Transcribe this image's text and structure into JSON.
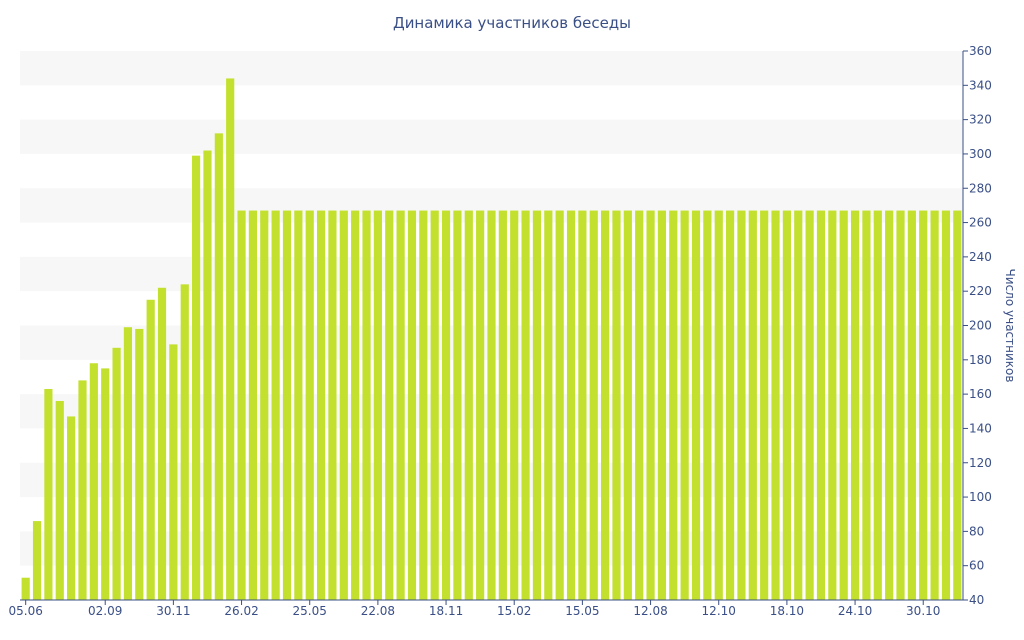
{
  "chart_data": {
    "type": "bar",
    "title": "Динамика участников беседы",
    "ylabel": "Число участников",
    "xlabel": "",
    "ylim": [
      40,
      360
    ],
    "yticks": [
      40,
      60,
      80,
      100,
      120,
      140,
      160,
      180,
      200,
      220,
      240,
      260,
      280,
      300,
      320,
      340,
      360
    ],
    "x_tick_labels": [
      "05.06",
      "02.09",
      "30.11",
      "26.02",
      "25.05",
      "22.08",
      "18.11",
      "15.02",
      "15.05",
      "12.08",
      "12.10",
      "18.10",
      "24.10",
      "30.10"
    ],
    "x_tick_label_indices": [
      0,
      7,
      13,
      19,
      25,
      31,
      37,
      43,
      49,
      55,
      61,
      67,
      73,
      79
    ],
    "values": [
      53,
      86,
      163,
      156,
      147,
      168,
      178,
      175,
      187,
      199,
      198,
      215,
      222,
      189,
      224,
      299,
      302,
      312,
      344,
      267,
      267,
      267,
      267,
      267,
      267,
      267,
      267,
      267,
      267,
      267,
      267,
      267,
      267,
      267,
      267,
      267,
      267,
      267,
      267,
      267,
      267,
      267,
      267,
      267,
      267,
      267,
      267,
      267,
      267,
      267,
      267,
      267,
      267,
      267,
      267,
      267,
      267,
      267,
      267,
      267,
      267,
      267,
      267,
      267,
      267,
      267,
      267,
      267,
      267,
      267,
      267,
      267,
      267,
      267,
      267,
      267,
      267,
      267,
      267,
      267,
      267,
      267,
      267
    ],
    "bar_color": "#c4e02e",
    "band_color": "#f7f7f7",
    "text_color": "#3a4f86",
    "grid": "alternating bands",
    "y_axis_side": "right"
  }
}
